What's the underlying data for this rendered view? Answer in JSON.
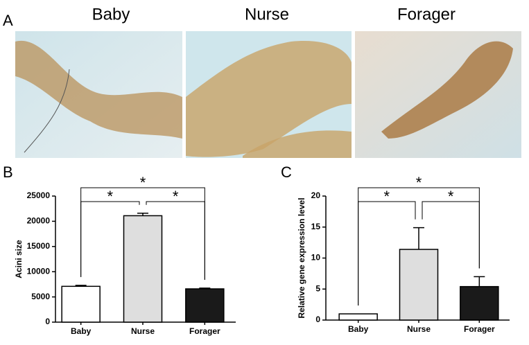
{
  "images": {
    "label": "A",
    "titles": [
      "Baby",
      "Nurse",
      "Forager"
    ]
  },
  "chart_data": [
    {
      "type": "bar",
      "label": "B",
      "ylabel": "Acini size",
      "categories": [
        "Baby",
        "Nurse",
        "Forager"
      ],
      "values": [
        7100,
        21100,
        6600
      ],
      "errors": [
        200,
        500,
        150
      ],
      "colors": [
        "#ffffff",
        "#dedede",
        "#1a1a1a"
      ],
      "ylim": [
        0,
        25000
      ],
      "yticks": [
        0,
        5000,
        10000,
        15000,
        20000,
        25000
      ],
      "annotations": [
        "*",
        "*",
        "*"
      ]
    },
    {
      "type": "bar",
      "label": "C",
      "ylabel": "Relative gene expression level",
      "categories": [
        "Baby",
        "Nurse",
        "Forager"
      ],
      "values": [
        1.0,
        11.4,
        5.4
      ],
      "errors": [
        0,
        3.5,
        1.6
      ],
      "colors": [
        "#ffffff",
        "#dedede",
        "#1a1a1a"
      ],
      "ylim": [
        0,
        20
      ],
      "yticks": [
        0,
        5,
        10,
        15,
        20
      ],
      "annotations": [
        "*",
        "*",
        "*"
      ]
    }
  ]
}
